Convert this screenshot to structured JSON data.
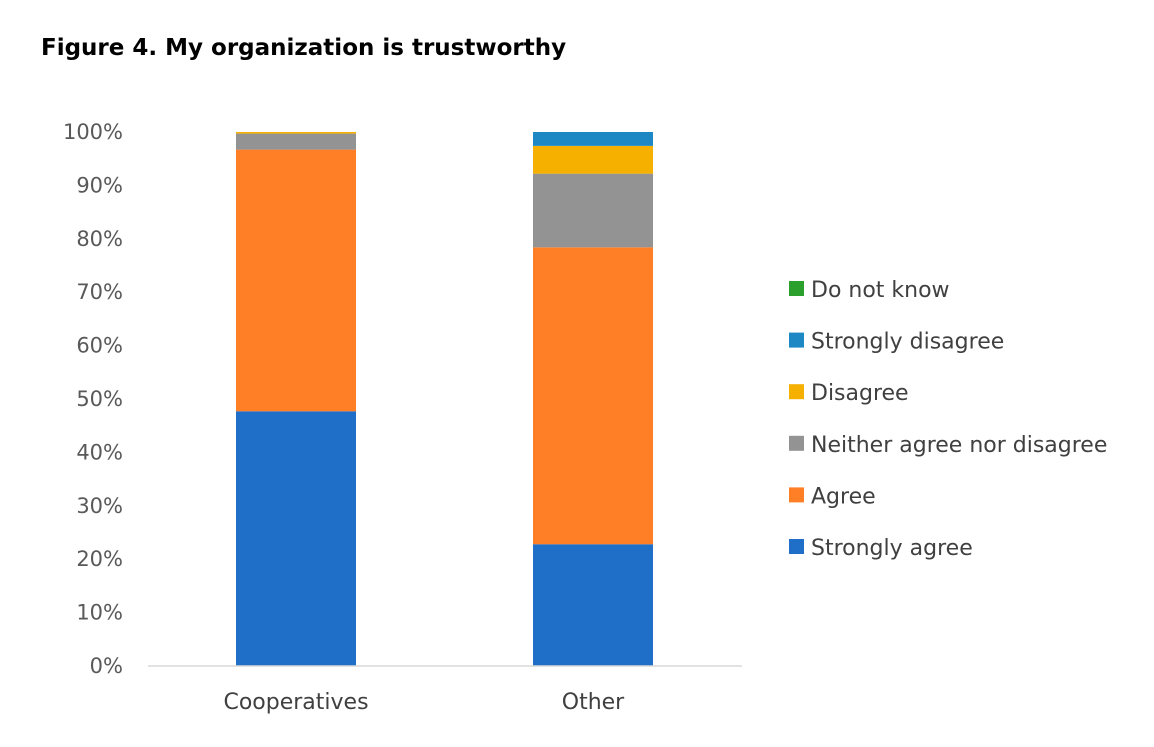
{
  "title": "Figure 4. My organization is trustworthy",
  "chart_data": {
    "type": "bar",
    "stacked": true,
    "title": "Figure 4. My organization is trustworthy",
    "categories": [
      "Cooperatives",
      "Other"
    ],
    "ylim": [
      0,
      100
    ],
    "yticks": [
      "0%",
      "10%",
      "20%",
      "30%",
      "40%",
      "50%",
      "60%",
      "70%",
      "80%",
      "90%",
      "100%"
    ],
    "grid": false,
    "legend_position": "right",
    "series": [
      {
        "name": "Strongly agree",
        "color": "#1F6FC9",
        "values": [
          47.7,
          22.8
        ]
      },
      {
        "name": "Agree",
        "color": "#FF7F27",
        "values": [
          49.0,
          55.6
        ]
      },
      {
        "name": "Neither agree nor disagree",
        "color": "#939393",
        "values": [
          3.0,
          13.8
        ]
      },
      {
        "name": "Disagree",
        "color": "#F5B000",
        "values": [
          0.3,
          5.2
        ]
      },
      {
        "name": "Strongly disagree",
        "color": "#1E88C4",
        "values": [
          0.0,
          2.6
        ]
      },
      {
        "name": "Do not know",
        "color": "#2CA02C",
        "values": [
          0.0,
          0.0
        ]
      }
    ]
  }
}
